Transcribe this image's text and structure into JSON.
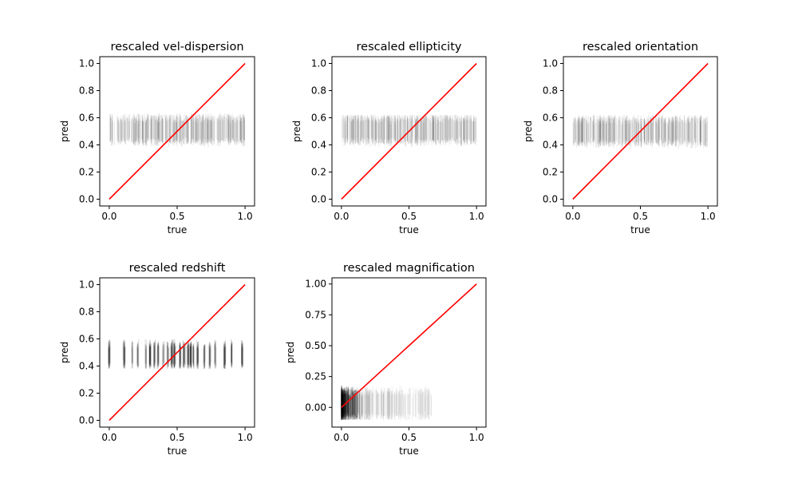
{
  "figure": {
    "background": "#ffffff"
  },
  "colors": {
    "identity_line": "#ff0000",
    "error_bars": "#000000"
  },
  "chart_data": [
    {
      "type": "scatter",
      "title": "rescaled vel-dispersion",
      "xlabel": "true",
      "ylabel": "pred",
      "xlim": [
        -0.07,
        1.07
      ],
      "ylim": [
        -0.05,
        1.05
      ],
      "xticks": [
        0.0,
        0.5,
        1.0
      ],
      "xtick_labels": [
        "0.0",
        "0.5",
        "1.0"
      ],
      "yticks": [
        0.0,
        0.2,
        0.4,
        0.6,
        0.8,
        1.0
      ],
      "ytick_labels": [
        "0.0",
        "0.2",
        "0.4",
        "0.6",
        "0.8",
        "1.0"
      ],
      "identity_line": [
        [
          0,
          0
        ],
        [
          1,
          1
        ]
      ],
      "points": {
        "x_range": [
          0.0,
          1.0
        ],
        "pred_center": 0.5,
        "err_low": 0.42,
        "err_high": 0.6,
        "spread_low": 0.37,
        "spread_high": 0.63,
        "distribution": "uniform"
      },
      "grid": false
    },
    {
      "type": "scatter",
      "title": "rescaled ellipticity",
      "xlabel": "true",
      "ylabel": "pred",
      "xlim": [
        -0.07,
        1.07
      ],
      "ylim": [
        -0.05,
        1.05
      ],
      "xticks": [
        0.0,
        0.5,
        1.0
      ],
      "xtick_labels": [
        "0.0",
        "0.5",
        "1.0"
      ],
      "yticks": [
        0.0,
        0.2,
        0.4,
        0.6,
        0.8,
        1.0
      ],
      "ytick_labels": [
        "0.0",
        "0.2",
        "0.4",
        "0.6",
        "0.8",
        "1.0"
      ],
      "identity_line": [
        [
          0,
          0
        ],
        [
          1,
          1
        ]
      ],
      "points": {
        "x_range": [
          0.0,
          1.0
        ],
        "pred_center": 0.5,
        "err_low": 0.42,
        "err_high": 0.6,
        "spread_low": 0.38,
        "spread_high": 0.62,
        "distribution": "uniform"
      },
      "grid": false
    },
    {
      "type": "scatter",
      "title": "rescaled orientation",
      "xlabel": "true",
      "ylabel": "pred",
      "xlim": [
        -0.07,
        1.07
      ],
      "ylim": [
        -0.05,
        1.05
      ],
      "xticks": [
        0.0,
        0.5,
        1.0
      ],
      "xtick_labels": [
        "0.0",
        "0.5",
        "1.0"
      ],
      "yticks": [
        0.0,
        0.2,
        0.4,
        0.6,
        0.8,
        1.0
      ],
      "ytick_labels": [
        "0.0",
        "0.2",
        "0.4",
        "0.6",
        "0.8",
        "1.0"
      ],
      "identity_line": [
        [
          0,
          0
        ],
        [
          1,
          1
        ]
      ],
      "points": {
        "x_range": [
          0.0,
          1.0
        ],
        "pred_center": 0.49,
        "err_low": 0.41,
        "err_high": 0.59,
        "spread_low": 0.36,
        "spread_high": 0.62,
        "distribution": "uniform"
      },
      "grid": false
    },
    {
      "type": "scatter",
      "title": "rescaled redshift",
      "xlabel": "true",
      "ylabel": "pred",
      "xlim": [
        -0.07,
        1.07
      ],
      "ylim": [
        -0.05,
        1.05
      ],
      "xticks": [
        0.0,
        0.5,
        1.0
      ],
      "xtick_labels": [
        "0.0",
        "0.5",
        "1.0"
      ],
      "yticks": [
        0.0,
        0.2,
        0.4,
        0.6,
        0.8,
        1.0
      ],
      "ytick_labels": [
        "0.0",
        "0.2",
        "0.4",
        "0.6",
        "0.8",
        "1.0"
      ],
      "identity_line": [
        [
          0,
          0
        ],
        [
          1,
          1
        ]
      ],
      "points": {
        "x_clusters": [
          0.0,
          0.11,
          0.17,
          0.21,
          0.27,
          0.3,
          0.33,
          0.36,
          0.4,
          0.43,
          0.46,
          0.48,
          0.52,
          0.55,
          0.58,
          0.6,
          0.62,
          0.65,
          0.7,
          0.74,
          0.78,
          0.85,
          0.9,
          0.98
        ],
        "pred_center": 0.47,
        "err_low": 0.4,
        "err_high": 0.56,
        "spread_low": 0.38,
        "spread_high": 0.6,
        "distribution": "clustered"
      },
      "grid": false
    },
    {
      "type": "scatter",
      "title": "rescaled magnification",
      "xlabel": "true",
      "ylabel": "pred",
      "xlim": [
        -0.07,
        1.07
      ],
      "ylim": [
        -0.16,
        1.05
      ],
      "xticks": [
        0.0,
        0.5,
        1.0
      ],
      "xtick_labels": [
        "0.0",
        "0.5",
        "1.0"
      ],
      "yticks": [
        0.0,
        0.25,
        0.5,
        0.75,
        1.0
      ],
      "ytick_labels": [
        "0.00",
        "0.25",
        "0.50",
        "0.75",
        "1.00"
      ],
      "identity_line": [
        [
          0,
          0
        ],
        [
          1,
          1
        ]
      ],
      "points": {
        "x_range": [
          0.0,
          0.67
        ],
        "pred_center": 0.02,
        "err_low": -0.08,
        "err_high": 0.13,
        "spread_low": -0.1,
        "spread_high": 0.22,
        "distribution": "skewed-low"
      },
      "grid": false
    }
  ]
}
